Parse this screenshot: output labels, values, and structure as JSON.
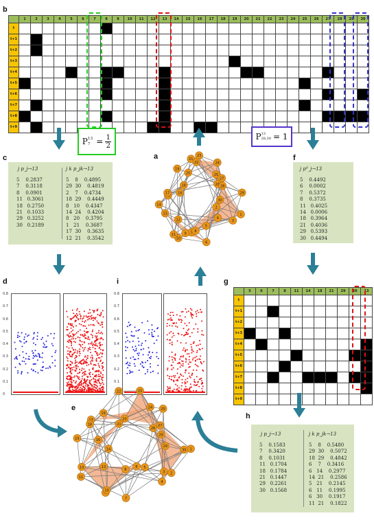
{
  "panel_labels": {
    "a": "a",
    "b": "b",
    "c": "c",
    "d": "d",
    "e": "e",
    "f": "f",
    "g": "g",
    "h": "h",
    "i": "i"
  },
  "grid_b": {
    "columns": [
      "1",
      "2",
      "3",
      "4",
      "5",
      "6",
      "7",
      "8",
      "9",
      "10",
      "11",
      "12",
      "13",
      "14",
      "15",
      "16",
      "17",
      "18",
      "19",
      "20",
      "21",
      "22",
      "23",
      "24",
      "25",
      "26",
      "27",
      "28",
      "29",
      "30"
    ],
    "rows": [
      "t",
      "t+1",
      "t+2",
      "t+3",
      "t+4",
      "t+5",
      "t+6",
      "t+7",
      "t+8",
      "t+9"
    ],
    "filled": [
      [
        0,
        7
      ],
      [
        1,
        1
      ],
      [
        2,
        1
      ],
      [
        3,
        18
      ],
      [
        4,
        4
      ],
      [
        4,
        7
      ],
      [
        4,
        8
      ],
      [
        4,
        12
      ],
      [
        4,
        19
      ],
      [
        4,
        20
      ],
      [
        4,
        26
      ],
      [
        5,
        0
      ],
      [
        5,
        7
      ],
      [
        5,
        12
      ],
      [
        5,
        24
      ],
      [
        6,
        7
      ],
      [
        6,
        12
      ],
      [
        6,
        26
      ],
      [
        6,
        29
      ],
      [
        7,
        1
      ],
      [
        7,
        12
      ],
      [
        7,
        24
      ],
      [
        8,
        0
      ],
      [
        8,
        7
      ],
      [
        8,
        12
      ],
      [
        8,
        26
      ],
      [
        8,
        27
      ],
      [
        8,
        28
      ],
      [
        8,
        29
      ],
      [
        9,
        1
      ],
      [
        9,
        11
      ],
      [
        9,
        12
      ],
      [
        9,
        15
      ],
      [
        9,
        16
      ]
    ],
    "highlight_cols": {
      "green": [
        6
      ],
      "red": [
        12
      ],
      "blue": [
        27,
        29
      ]
    },
    "colors": {
      "header": "#9cbd5c",
      "rowhead": "#f7c400",
      "green": "#22cc22",
      "red": "#dd1111",
      "blue": "#3333cc"
    }
  },
  "formula_left": {
    "p": "P",
    "sup": "13",
    "sub": "7",
    "num": "1",
    "den": "2",
    "border": "#22cc22"
  },
  "formula_right": {
    "p": "P",
    "sup": "13",
    "sub": "28,30",
    "eq": "= 1",
    "border": "#5533cc"
  },
  "panel_c": {
    "left_header": "j   p_j→13",
    "right_header": "j   k   p_jk→13",
    "left_rows": [
      "5    0.2837",
      "7    0.3118",
      "8    0.0901",
      "11   0.3061",
      "18   0.2750",
      "21   0.1033",
      "29   0.3252",
      "30   0.2189"
    ],
    "right_rows": [
      "5    8    0.4895",
      "29  30    0.4819",
      "2    7    0.4734",
      "18  29    0.4449",
      "8   10    0.4347",
      "14  24    0.4204",
      "8   20    0.3795",
      "1   21    0.3687",
      "17  30    0.3635",
      "12  21    0.3542"
    ]
  },
  "panel_f": {
    "header": "j   p⁰_j→13",
    "rows": [
      "5    0.4492",
      "6    0.0002",
      "7    0.5372",
      "8    0.3735",
      "11   0.4025",
      "14   0.0006",
      "18   0.3964",
      "21   0.4036",
      "29   0.5393",
      "30   0.4494"
    ]
  },
  "panel_h": {
    "left_header": "j   p_j→13",
    "right_header": "j   k   p_jk→13",
    "left_rows": [
      "5    0.1583",
      "7    0.3420",
      "8    0.1031",
      "11   0.1704",
      "18   0.1784",
      "21   0.1447",
      "29   0.2261",
      "30   0.1568"
    ],
    "right_rows": [
      "5    8    0.5480",
      "29  30    0.5072",
      "18  29    0.4842",
      "6    7    0.3416",
      "6   14    0.2977",
      "14  21    0.2586",
      "5   21    0.2145",
      "6   11    0.1995",
      "6   30    0.1917",
      "11  21    0.1822"
    ]
  },
  "grid_g": {
    "columns": [
      "5",
      "6",
      "7",
      "8",
      "11",
      "14",
      "18",
      "21",
      "29",
      "30",
      "13"
    ],
    "rows": [
      "t",
      "t+1",
      "t+2",
      "t+3",
      "t+4",
      "t+5",
      "t+6",
      "t+7",
      "t+8",
      "t+9"
    ],
    "filled": [
      [
        1,
        2
      ],
      [
        3,
        0
      ],
      [
        3,
        3
      ],
      [
        4,
        1
      ],
      [
        4,
        10
      ],
      [
        5,
        4
      ],
      [
        5,
        9
      ],
      [
        5,
        10
      ],
      [
        6,
        3
      ],
      [
        6,
        10
      ],
      [
        7,
        2
      ],
      [
        7,
        5
      ],
      [
        7,
        6
      ],
      [
        7,
        7
      ],
      [
        7,
        9
      ],
      [
        7,
        10
      ],
      [
        8,
        10
      ]
    ]
  },
  "scatter_ticks": [
    "0.8",
    "0.7",
    "0.6",
    "0.5",
    "0.4",
    "0.3",
    "0.2",
    "0.1",
    "0"
  ],
  "scatter_ticks_i": [
    "0.8",
    "0.7",
    "0.6",
    "0.5",
    "0.4",
    "0.3",
    "0.2",
    "0.1",
    "0"
  ],
  "network_a": [
    "1",
    "2",
    "3",
    "4",
    "5",
    "6",
    "7",
    "8",
    "9",
    "10",
    "11",
    "12",
    "13",
    "14",
    "15",
    "16",
    "17",
    "18",
    "19",
    "20",
    "21",
    "22",
    "23",
    "24",
    "25",
    "26",
    "27",
    "28",
    "29",
    "30"
  ],
  "network_e": [
    "1",
    "2",
    "3",
    "4",
    "5",
    "6",
    "7",
    "8",
    "9",
    "10",
    "11",
    "12",
    "13",
    "14",
    "15",
    "16",
    "17",
    "18",
    "19",
    "20",
    "21",
    "22",
    "23",
    "24",
    "25",
    "26",
    "27",
    "28",
    "29",
    "30"
  ],
  "colors": {
    "arrow": "#2b7f97",
    "node": "#e8951a",
    "edge": "#777777",
    "triangle": "#f0a070",
    "panel_bg": "#d8e4c1",
    "blue_pts": "#2222dd",
    "red_pts": "#ee1111"
  }
}
